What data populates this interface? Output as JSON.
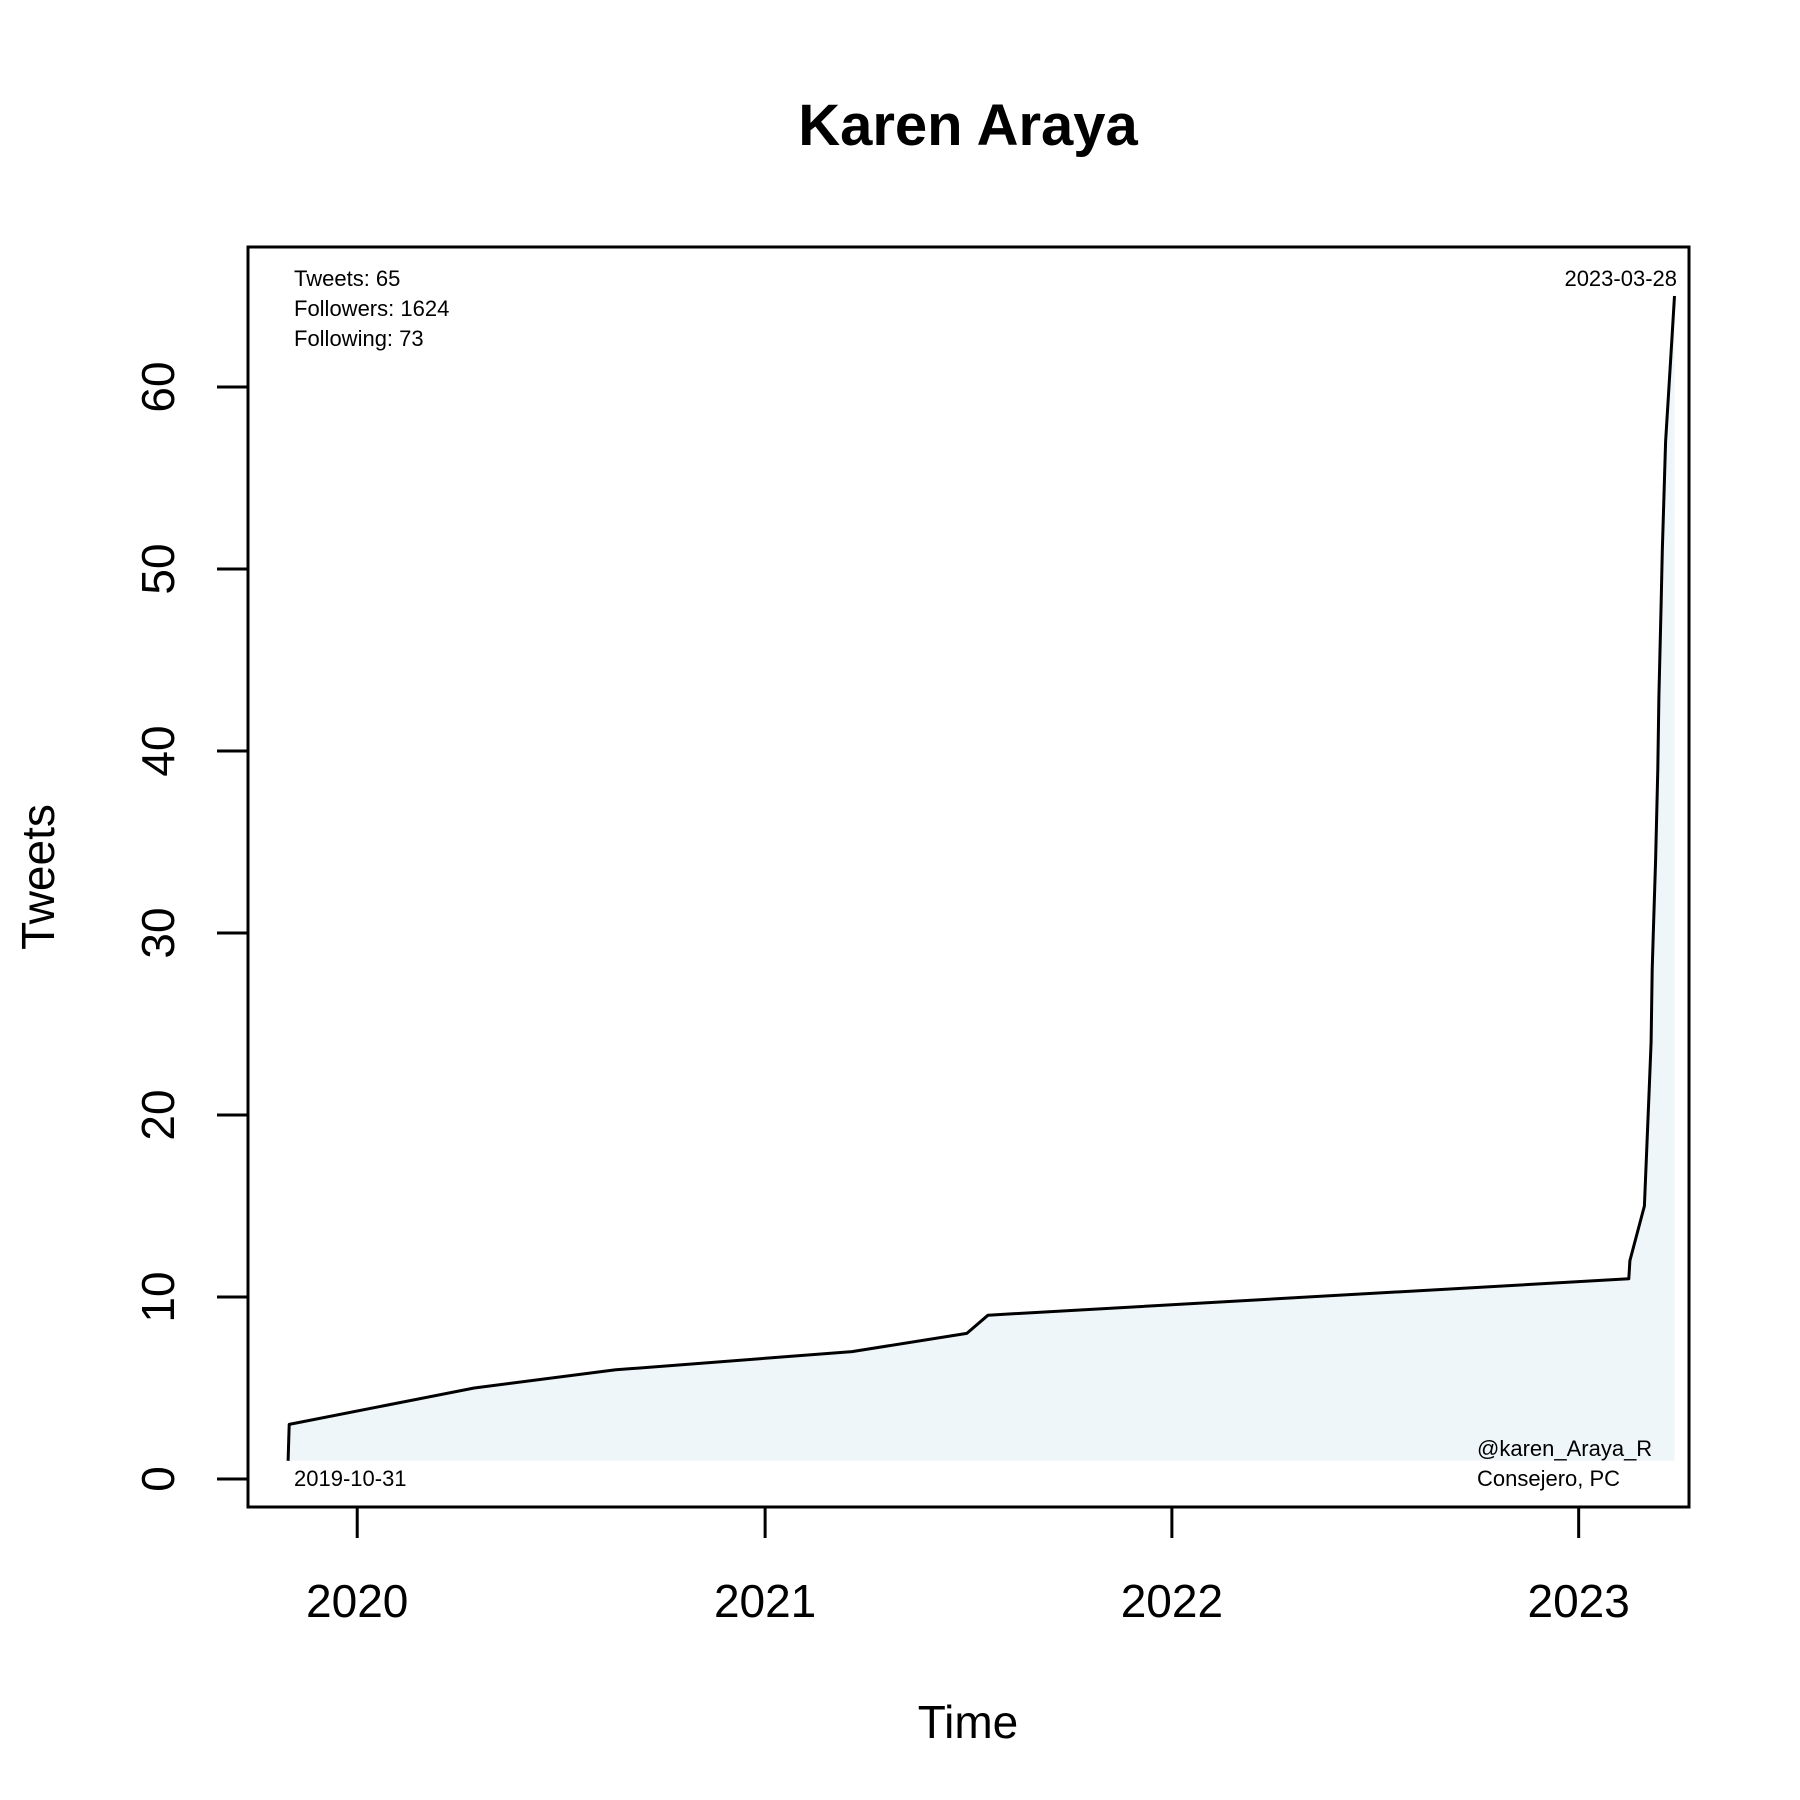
{
  "chart_data": {
    "type": "area",
    "title": "Karen Araya",
    "xlabel": "Time",
    "ylabel": "Tweets",
    "x_ticks": [
      "2020",
      "2021",
      "2022",
      "2023"
    ],
    "y_ticks": [
      "0",
      "10",
      "20",
      "30",
      "40",
      "50",
      "60"
    ],
    "ylim": [
      0,
      65
    ],
    "xlim": [
      "2019-09-25",
      "2023-04-10"
    ],
    "grid": false,
    "line_color": "#000000",
    "fill_color": "#eef6fa",
    "x": [
      "2019-10-31",
      "2019-11-01",
      "2020-04-15",
      "2020-08-20",
      "2021-03-20",
      "2021-07-01",
      "2021-07-20",
      "2023-02-15",
      "2023-02-16",
      "2023-03-01",
      "2023-03-05",
      "2023-03-07",
      "2023-03-08",
      "2023-03-09",
      "2023-03-11",
      "2023-03-13",
      "2023-03-14",
      "2023-03-16",
      "2023-03-17",
      "2023-03-18",
      "2023-03-19",
      "2023-03-20",
      "2023-03-25",
      "2023-03-28"
    ],
    "values": [
      1,
      3,
      5,
      6,
      7,
      8,
      9,
      11,
      12,
      15,
      21,
      24,
      28,
      30,
      34,
      39,
      43,
      48,
      51,
      53,
      55,
      57,
      62,
      65
    ],
    "start_label": "2019-10-31",
    "end_label": "2023-03-28"
  },
  "stats": {
    "tweets": "Tweets: 65",
    "followers": "Followers: 1624",
    "following": "Following: 73"
  },
  "account": {
    "handle": "@karen_Araya_R",
    "role": "Consejero, PC"
  }
}
